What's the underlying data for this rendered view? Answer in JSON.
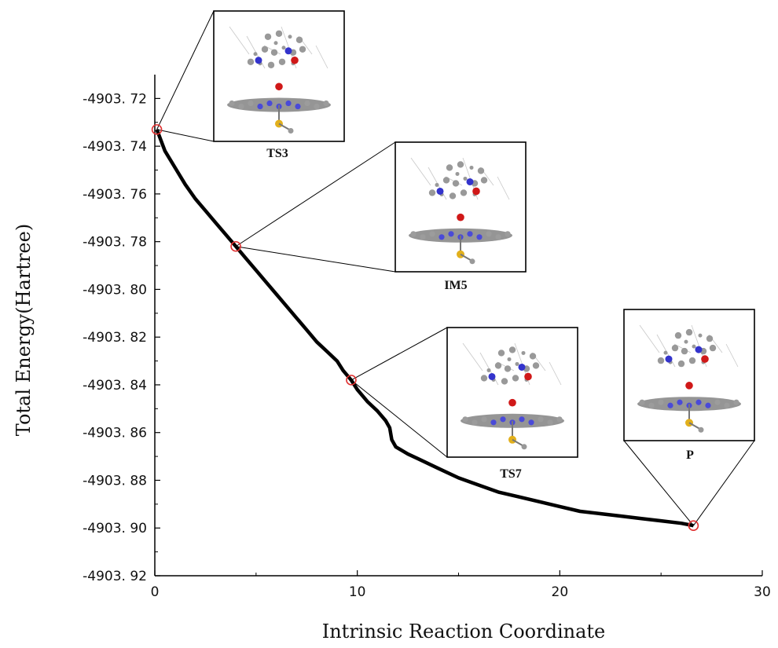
{
  "chart_data": {
    "type": "line",
    "xlabel": "Intrinsic Reaction Coordinate",
    "ylabel": "Total Energy(Hartree)",
    "xlim": [
      0,
      30
    ],
    "ylim": [
      -4903.92,
      -4903.71
    ],
    "x_ticks": [
      0,
      10,
      20,
      30
    ],
    "x_tick_labels": [
      "0",
      "10",
      "20",
      "30"
    ],
    "y_ticks": [
      -4903.72,
      -4903.74,
      -4903.76,
      -4903.78,
      -4903.8,
      -4903.82,
      -4903.84,
      -4903.86,
      -4903.88,
      -4903.9,
      -4903.92
    ],
    "y_tick_labels": [
      "-4903. 72",
      "-4903. 74",
      "-4903. 76",
      "-4903. 78",
      "-4903. 80",
      "-4903. 82",
      "-4903. 84",
      "-4903. 86",
      "-4903. 88",
      "-4903. 90",
      "-4903. 92"
    ],
    "grid": false,
    "series": [
      {
        "x": [
          0.1,
          0.5,
          1.0,
          1.5,
          2.0,
          2.5,
          3.0,
          3.5,
          4.0,
          4.5,
          5.0,
          5.5,
          6.0,
          6.5,
          7.0,
          7.5,
          8.0,
          8.5,
          9.0,
          9.3,
          9.7,
          10.0,
          10.5,
          11.0,
          11.4,
          11.6,
          11.7,
          11.9,
          12.5,
          13.0,
          14.0,
          15.0,
          16.0,
          17.0,
          18.0,
          19.0,
          20.0,
          21.0,
          22.0,
          23.0,
          24.0,
          25.0,
          26.0,
          26.6
        ],
        "y": [
          -4903.733,
          -4903.742,
          -4903.749,
          -4903.756,
          -4903.762,
          -4903.767,
          -4903.772,
          -4903.777,
          -4903.782,
          -4903.787,
          -4903.792,
          -4903.797,
          -4903.802,
          -4903.807,
          -4903.812,
          -4903.817,
          -4903.822,
          -4903.826,
          -4903.83,
          -4903.834,
          -4903.838,
          -4903.842,
          -4903.847,
          -4903.851,
          -4903.855,
          -4903.858,
          -4903.863,
          -4903.866,
          -4903.869,
          -4903.871,
          -4903.875,
          -4903.879,
          -4903.882,
          -4903.885,
          -4903.887,
          -4903.889,
          -4903.891,
          -4903.893,
          -4903.894,
          -4903.895,
          -4903.896,
          -4903.897,
          -4903.898,
          -4903.899
        ]
      }
    ],
    "points": [
      {
        "label": "TS3",
        "x": 0.1,
        "y": -4903.733
      },
      {
        "label": "IM5",
        "x": 4.0,
        "y": -4903.782
      },
      {
        "label": "TS7",
        "x": 9.7,
        "y": -4903.838
      },
      {
        "label": "P",
        "x": 26.6,
        "y": -4903.899
      }
    ],
    "line_color": "#000000",
    "marker_color": "#e03030"
  }
}
